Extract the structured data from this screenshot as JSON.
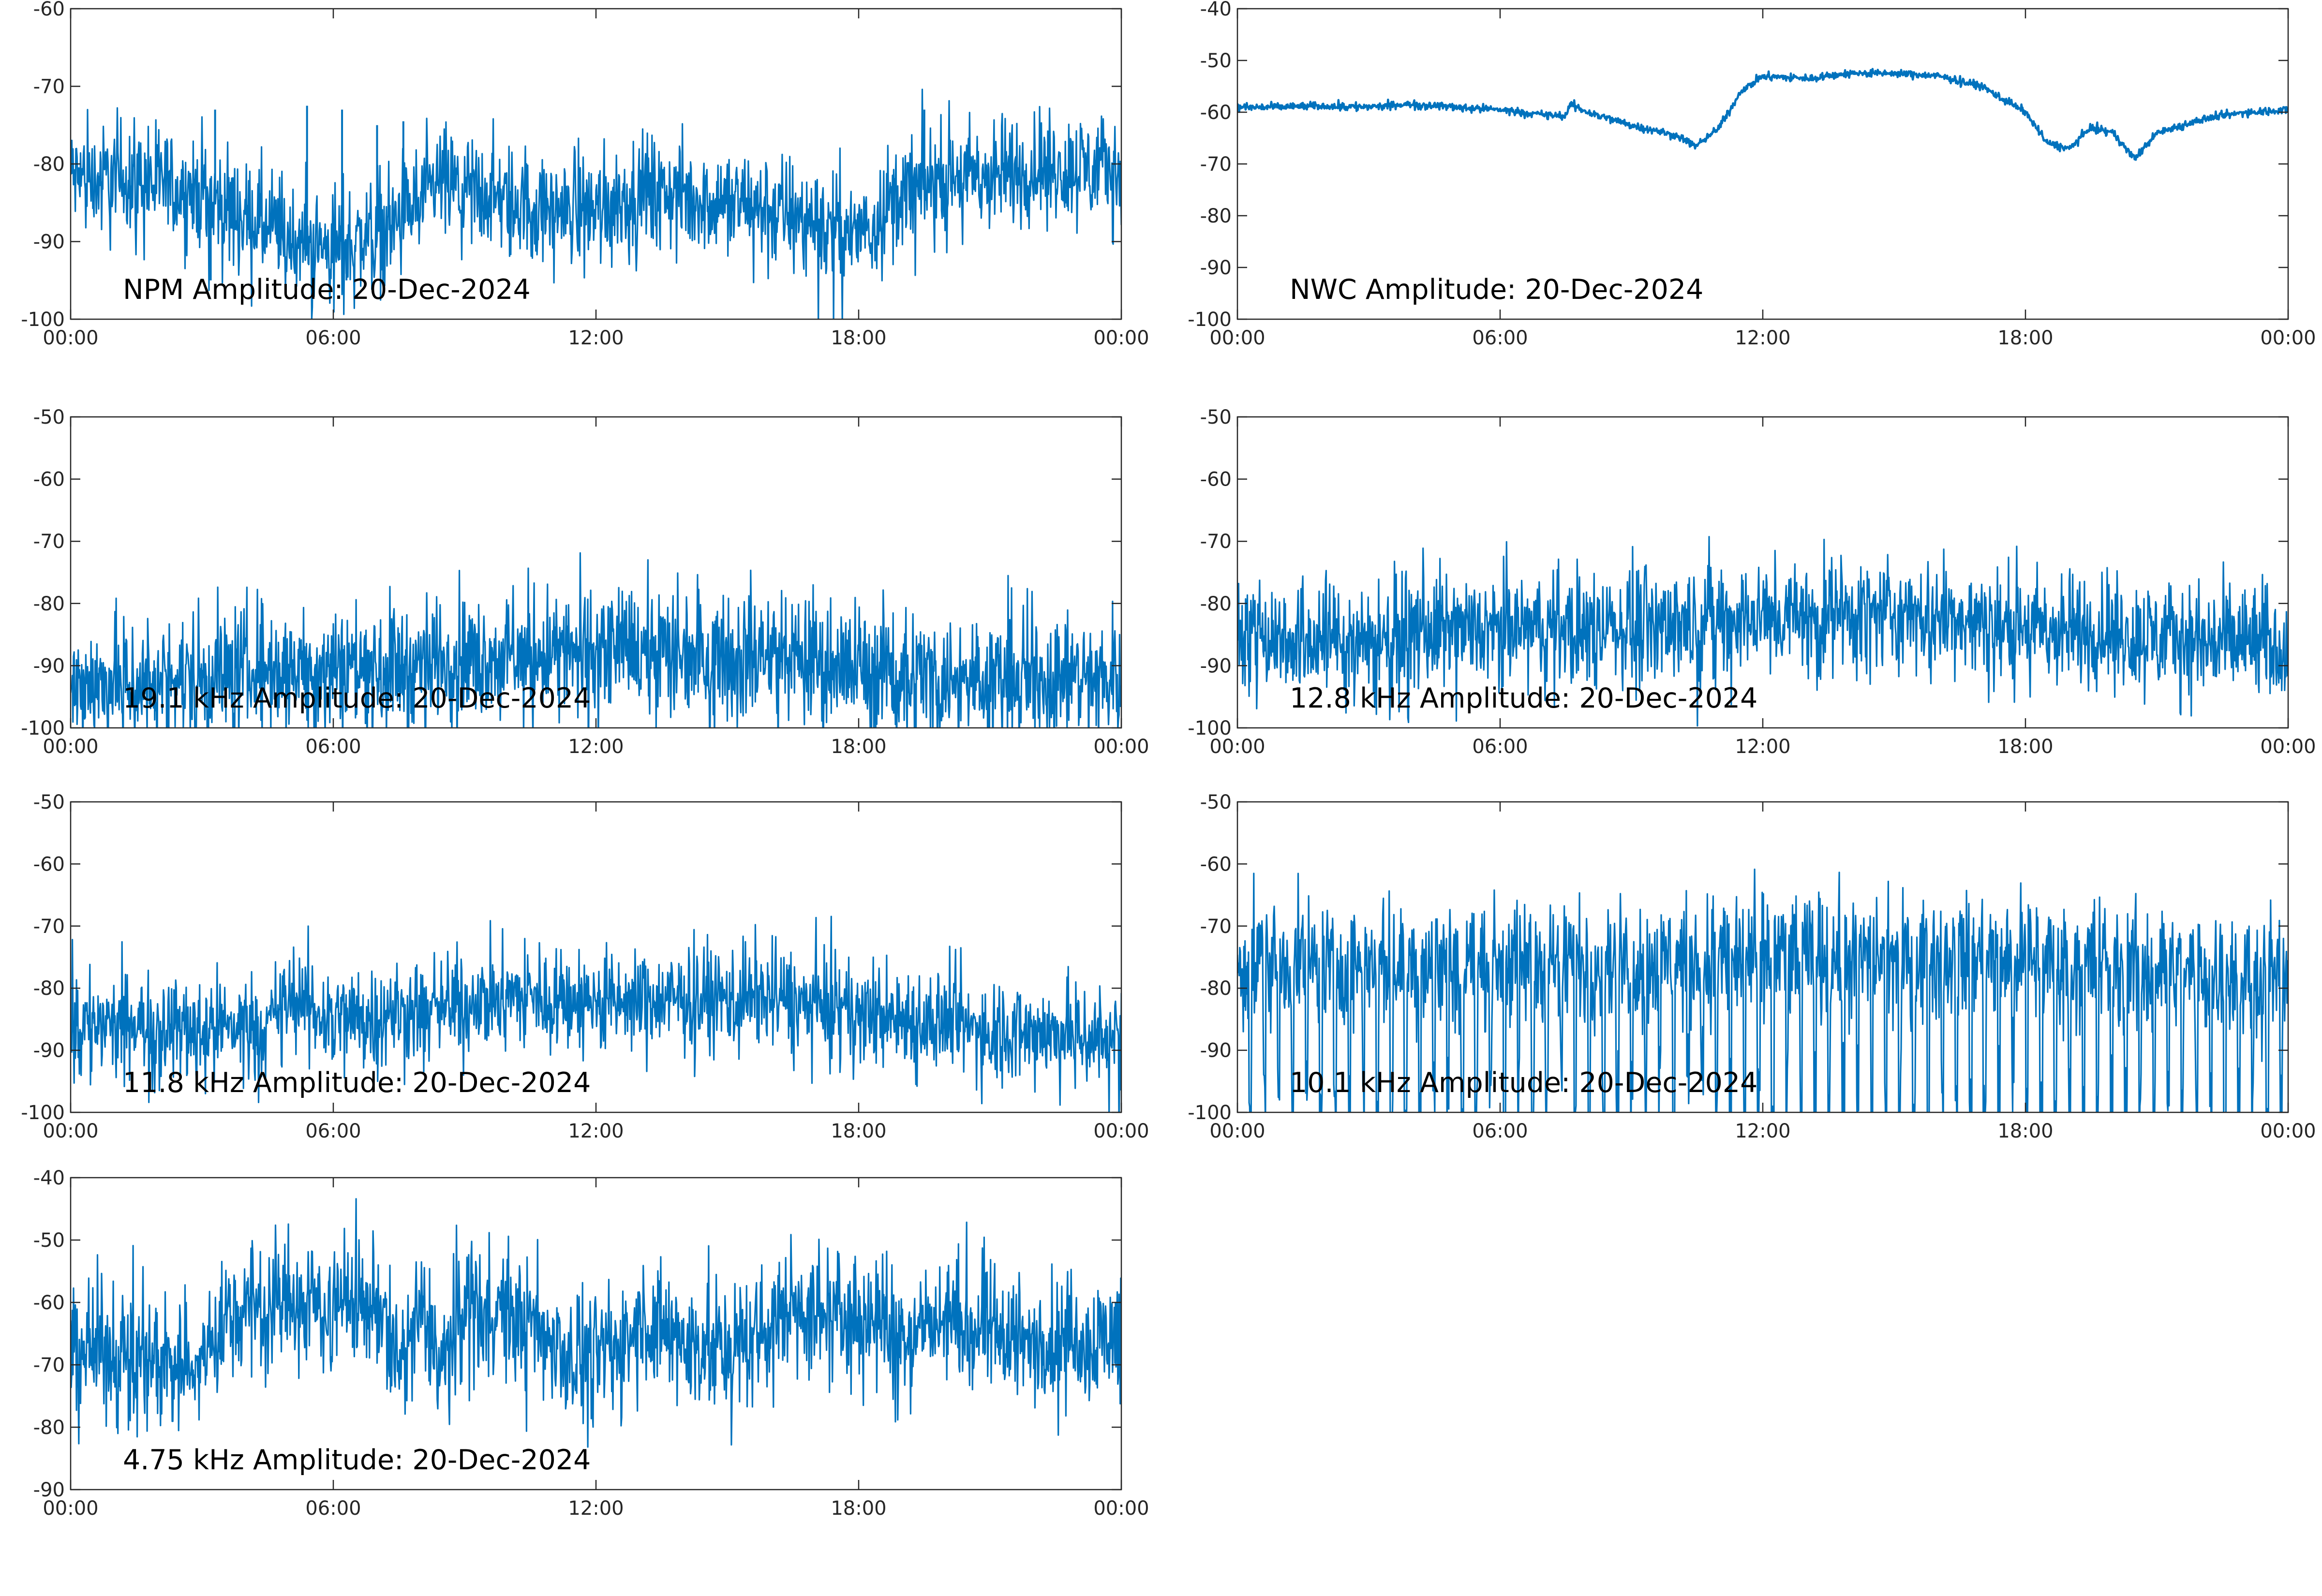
{
  "colors": {
    "trace": "#0072BD",
    "axes": "#262626",
    "background": "#ffffff"
  },
  "chart_data": [
    {
      "type": "line",
      "title": "NPM Amplitude: 20-Dec-2024",
      "ylim": [
        -100,
        -60
      ],
      "yticks": [
        -100,
        -90,
        -80,
        -70,
        -60
      ],
      "xlim": [
        "00:00",
        "24:00"
      ],
      "xticks": [
        "00:00",
        "06:00",
        "12:00",
        "18:00",
        "00:00"
      ],
      "grid": false,
      "noise": 3.5,
      "x": [
        0,
        2,
        3,
        4,
        5,
        6,
        7,
        8,
        8.5,
        9,
        10,
        11,
        12,
        13,
        14,
        15,
        16,
        17,
        17.8,
        18.5,
        19,
        20,
        21,
        22,
        23,
        24
      ],
      "y": [
        -81.5,
        -82.5,
        -84,
        -87,
        -90,
        -91,
        -89,
        -85,
        -82.5,
        -83.5,
        -85,
        -86,
        -85.5,
        -84,
        -84,
        -85,
        -86,
        -87.5,
        -89.5,
        -86,
        -84,
        -82,
        -81.5,
        -81,
        -80.5,
        -81
      ],
      "spikes": [
        {
          "x": 3.3,
          "y": -73
        },
        {
          "x": 5.4,
          "y": -72.5
        },
        {
          "x": 6.2,
          "y": -73
        },
        {
          "x": 7.0,
          "y": -75
        },
        {
          "x": 7.6,
          "y": -74.5
        },
        {
          "x": 19.5,
          "y": -73
        },
        {
          "x": 3.2,
          "y": -95
        },
        {
          "x": 6.3,
          "y": -95
        }
      ]
    },
    {
      "type": "line",
      "title": "NWC Amplitude: 20-Dec-2024",
      "ylim": [
        -100,
        -40
      ],
      "yticks": [
        -100,
        -90,
        -80,
        -70,
        -60,
        -50,
        -40
      ],
      "xlim": [
        "00:00",
        "24:00"
      ],
      "xticks": [
        "00:00",
        "06:00",
        "12:00",
        "18:00",
        "00:00"
      ],
      "grid": false,
      "noise": 0.35,
      "x": [
        0,
        1,
        2,
        3,
        4,
        5,
        6,
        7,
        7.5,
        7.6,
        8,
        9,
        10,
        10.5,
        11,
        11.5,
        12,
        13,
        14,
        15,
        16,
        17,
        18,
        18.5,
        19,
        19.5,
        20,
        20.5,
        21,
        22,
        23,
        24
      ],
      "y": [
        -59,
        -59,
        -58.8,
        -59,
        -58.5,
        -59,
        -59.5,
        -60.5,
        -60.8,
        -58.5,
        -60,
        -62.5,
        -64.5,
        -66.5,
        -63,
        -56,
        -53,
        -53.5,
        -52.5,
        -52.5,
        -53,
        -55,
        -60,
        -66,
        -67,
        -63,
        -64,
        -69,
        -64,
        -61.5,
        -60,
        -59.5
      ]
    },
    {
      "type": "line",
      "title": "19.1 kHz Amplitude: 20-Dec-2024",
      "ylim": [
        -100,
        -50
      ],
      "yticks": [
        -100,
        -90,
        -80,
        -70,
        -60,
        -50
      ],
      "xlim": [
        "00:00",
        "24:00"
      ],
      "xticks": [
        "00:00",
        "06:00",
        "12:00",
        "18:00",
        "00:00"
      ],
      "grid": false,
      "noise": 5,
      "x": [
        0,
        2,
        4,
        6,
        8,
        10,
        12,
        14,
        16,
        18,
        20,
        22,
        24
      ],
      "y": [
        -93,
        -92.5,
        -91,
        -90,
        -89.5,
        -88.5,
        -88,
        -88,
        -88.5,
        -90.5,
        -92,
        -92,
        -92
      ]
    },
    {
      "type": "line",
      "title": "12.8 kHz Amplitude: 20-Dec-2024",
      "ylim": [
        -100,
        -50
      ],
      "yticks": [
        -100,
        -90,
        -80,
        -70,
        -60,
        -50
      ],
      "xlim": [
        "00:00",
        "24:00"
      ],
      "xticks": [
        "00:00",
        "06:00",
        "12:00",
        "18:00",
        "00:00"
      ],
      "grid": false,
      "noise": 4.5,
      "x": [
        0,
        2,
        3.5,
        4,
        6,
        8,
        10,
        12,
        14,
        16,
        18,
        20,
        22,
        24
      ],
      "y": [
        -84,
        -86,
        -86,
        -84.5,
        -84.5,
        -84,
        -83,
        -82.5,
        -82,
        -82,
        -84,
        -85,
        -86,
        -87
      ]
    },
    {
      "type": "line",
      "title": "11.8 kHz Amplitude: 20-Dec-2024",
      "ylim": [
        -100,
        -50
      ],
      "yticks": [
        -100,
        -90,
        -80,
        -70,
        -60,
        -50
      ],
      "xlim": [
        "00:00",
        "24:00"
      ],
      "xticks": [
        "00:00",
        "06:00",
        "12:00",
        "18:00",
        "00:00"
      ],
      "grid": false,
      "noise": 4,
      "x": [
        0,
        2,
        4.5,
        5,
        6,
        8,
        10,
        12,
        14,
        16,
        18,
        20,
        22,
        24
      ],
      "y": [
        -86,
        -86.5,
        -86,
        -82,
        -85,
        -84,
        -81,
        -82.5,
        -82,
        -81.5,
        -84,
        -86,
        -87,
        -88
      ]
    },
    {
      "type": "line",
      "title": "10.1 kHz Amplitude: 20-Dec-2024",
      "ylim": [
        -100,
        -50
      ],
      "yticks": [
        -100,
        -90,
        -80,
        -70,
        -60,
        -50
      ],
      "xlim": [
        "00:00",
        "24:00"
      ],
      "xticks": [
        "00:00",
        "06:00",
        "12:00",
        "18:00",
        "00:00"
      ],
      "grid": false,
      "noise": 5,
      "oscillating": true,
      "x": [
        0,
        3,
        6,
        12,
        18,
        21,
        24
      ],
      "y": [
        -76,
        -76,
        -76,
        -75,
        -75,
        -77,
        -78
      ]
    },
    {
      "type": "line",
      "title": "4.75 kHz Amplitude: 20-Dec-2024",
      "ylim": [
        -90,
        -40
      ],
      "yticks": [
        -90,
        -80,
        -70,
        -60,
        -50,
        -40
      ],
      "xlim": [
        "00:00",
        "24:00"
      ],
      "xticks": [
        "00:00",
        "06:00",
        "12:00",
        "18:00",
        "00:00"
      ],
      "grid": false,
      "noise": 5,
      "x": [
        0,
        1,
        2,
        3,
        3.5,
        4,
        5,
        6,
        7,
        7.5,
        8,
        8.5,
        9,
        10,
        11,
        12,
        13,
        14,
        15,
        16,
        16.5,
        17,
        18,
        19,
        20,
        21,
        22,
        23,
        24
      ],
      "y": [
        -67,
        -68,
        -69,
        -70,
        -63,
        -61,
        -60,
        -60.5,
        -60,
        -70,
        -62,
        -71,
        -60,
        -62,
        -66,
        -70,
        -64,
        -66,
        -68,
        -64,
        -60,
        -62,
        -62,
        -65,
        -63,
        -65,
        -67,
        -66,
        -65
      ]
    }
  ]
}
